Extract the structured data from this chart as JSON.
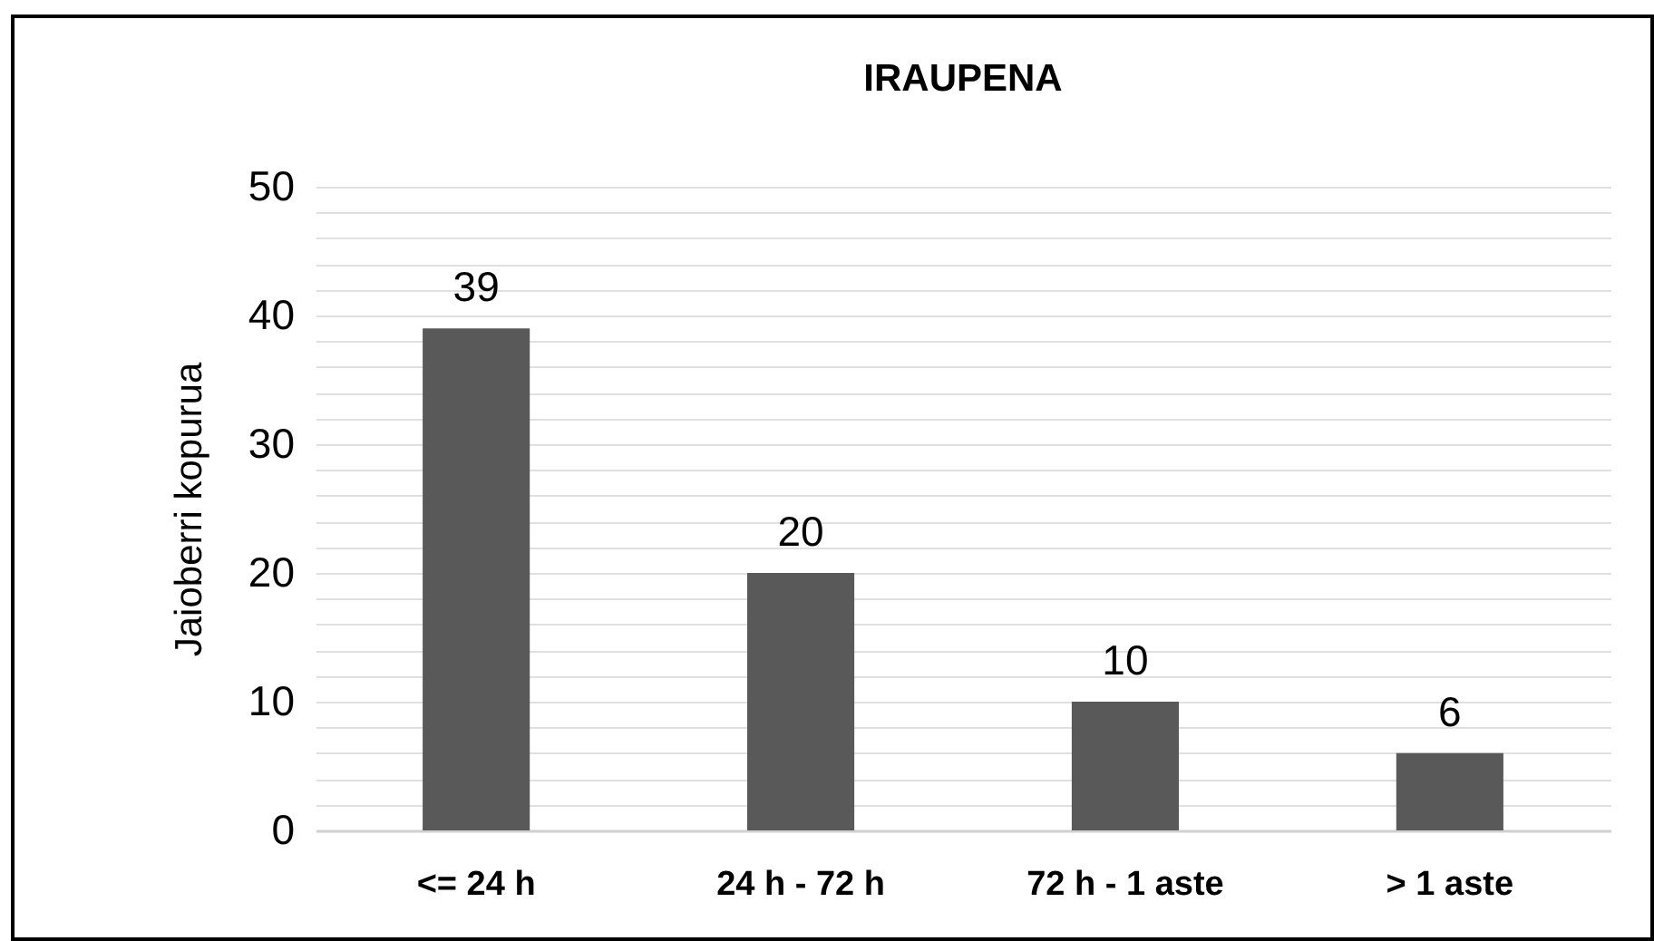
{
  "chart_data": {
    "type": "bar",
    "title": "IRAUPENA",
    "ylabel": "Jaioberri kopurua",
    "categories": [
      "<= 24 h",
      "24 h - 72 h",
      "72 h - 1 aste",
      "> 1 aste"
    ],
    "values": [
      39,
      20,
      10,
      6
    ],
    "color": "#595959",
    "ylim": [
      0,
      50
    ],
    "yticks": [
      0,
      {
        "value": 2,
        "label": null
      },
      {
        "value": 4,
        "label": null
      },
      {
        "value": 6,
        "label": null
      },
      {
        "value": 8,
        "label": null
      },
      10,
      {
        "value": 12,
        "label": null
      },
      {
        "value": 14,
        "label": null
      },
      {
        "value": 16,
        "label": null
      },
      {
        "value": 18,
        "label": null
      },
      20,
      {
        "value": 22,
        "label": null
      },
      {
        "value": 24,
        "label": null
      },
      {
        "value": 26,
        "label": null
      },
      {
        "value": 28,
        "label": null
      },
      30,
      {
        "value": 32,
        "label": null
      },
      {
        "value": 34,
        "label": null
      },
      {
        "value": 36,
        "label": null
      },
      {
        "value": 38,
        "label": null
      },
      40,
      {
        "value": 42,
        "label": null
      },
      {
        "value": 44,
        "label": null
      },
      {
        "value": 46,
        "label": null
      },
      {
        "value": 48,
        "label": null
      },
      50
    ],
    "grid": "y",
    "data_labels": true
  }
}
